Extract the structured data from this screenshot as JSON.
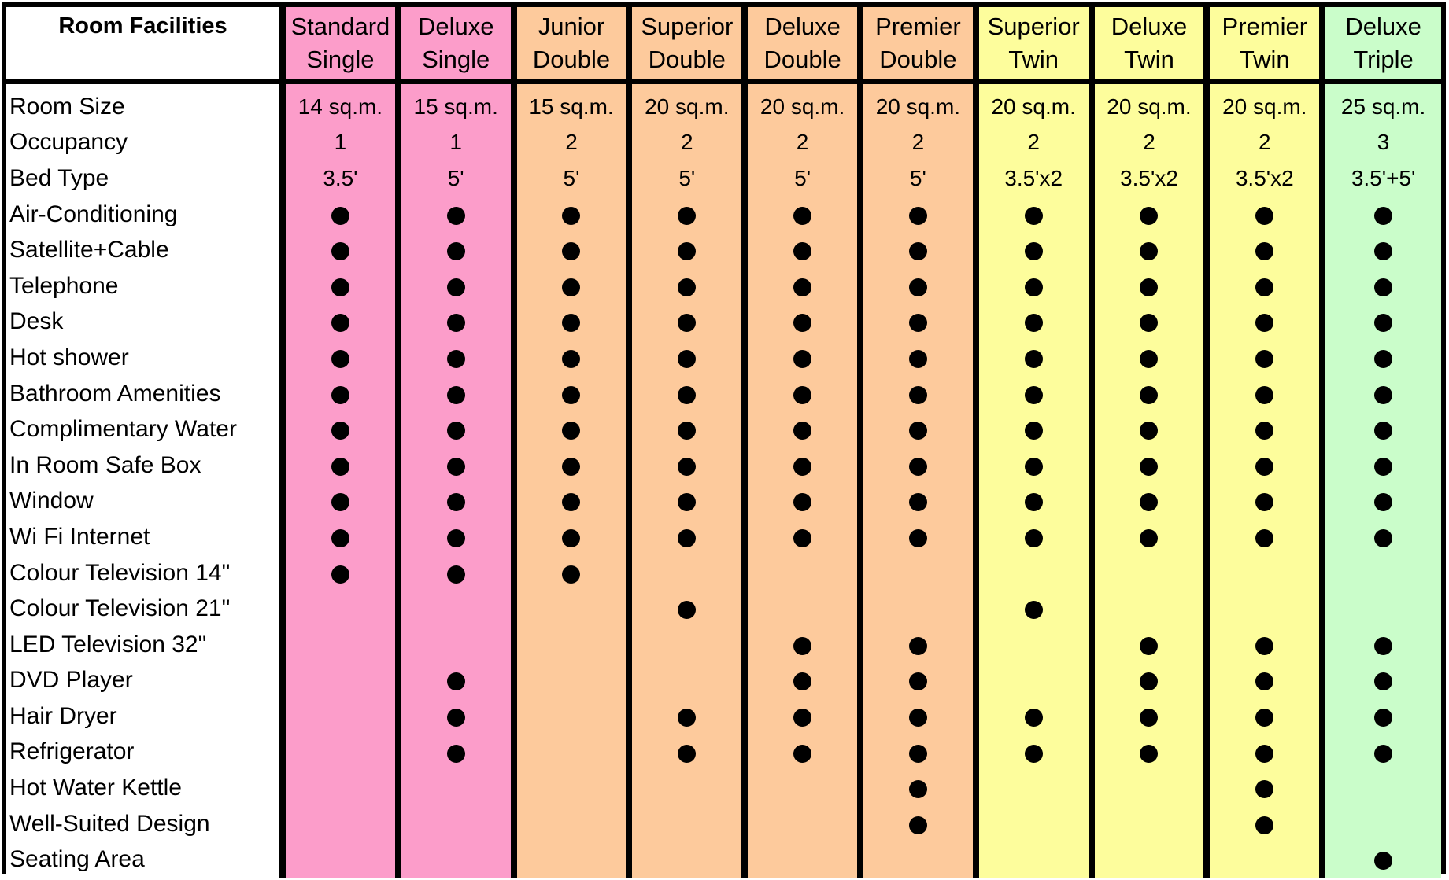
{
  "header_label": "Room Facilities",
  "rooms": [
    {
      "line1": "Standard",
      "line2": "Single",
      "tone": "pink"
    },
    {
      "line1": "Deluxe",
      "line2": "Single",
      "tone": "pink"
    },
    {
      "line1": "Junior",
      "line2": "Double",
      "tone": "peach"
    },
    {
      "line1": "Superior",
      "line2": "Double",
      "tone": "peach"
    },
    {
      "line1": "Deluxe",
      "line2": "Double",
      "tone": "peach"
    },
    {
      "line1": "Premier",
      "line2": "Double",
      "tone": "peach"
    },
    {
      "line1": "Superior",
      "line2": "Twin",
      "tone": "yellow"
    },
    {
      "line1": "Deluxe",
      "line2": "Twin",
      "tone": "yellow"
    },
    {
      "line1": "Premier",
      "line2": "Twin",
      "tone": "yellow"
    },
    {
      "line1": "Deluxe",
      "line2": "Triple",
      "tone": "green"
    }
  ],
  "tone_colors": {
    "pink": "#fc9dca",
    "peach": "#fdca9c",
    "yellow": "#fdfd9c",
    "green": "#cafdca"
  },
  "text_rows": [
    {
      "label": "Room Size",
      "values": [
        "14 sq.m.",
        "15 sq.m.",
        "15 sq.m.",
        "20 sq.m.",
        "20 sq.m.",
        "20 sq.m.",
        "20 sq.m.",
        "20 sq.m.",
        "20 sq.m.",
        "25 sq.m."
      ]
    },
    {
      "label": "Occupancy",
      "values": [
        "1",
        "1",
        "2",
        "2",
        "2",
        "2",
        "2",
        "2",
        "2",
        "3"
      ]
    },
    {
      "label": "Bed Type",
      "values": [
        "3.5'",
        "5'",
        "5'",
        "5'",
        "5'",
        "5'",
        "3.5'x2",
        "3.5'x2",
        "3.5'x2",
        "3.5'+5'"
      ]
    }
  ],
  "feature_rows": [
    {
      "label": "Air-Conditioning",
      "available": [
        1,
        1,
        1,
        1,
        1,
        1,
        1,
        1,
        1,
        1
      ]
    },
    {
      "label": "Satellite+Cable",
      "available": [
        1,
        1,
        1,
        1,
        1,
        1,
        1,
        1,
        1,
        1
      ]
    },
    {
      "label": "Telephone",
      "available": [
        1,
        1,
        1,
        1,
        1,
        1,
        1,
        1,
        1,
        1
      ]
    },
    {
      "label": "Desk",
      "available": [
        1,
        1,
        1,
        1,
        1,
        1,
        1,
        1,
        1,
        1
      ]
    },
    {
      "label": "Hot shower",
      "available": [
        1,
        1,
        1,
        1,
        1,
        1,
        1,
        1,
        1,
        1
      ]
    },
    {
      "label": "Bathroom Amenities",
      "available": [
        1,
        1,
        1,
        1,
        1,
        1,
        1,
        1,
        1,
        1
      ]
    },
    {
      "label": "Complimentary Water",
      "available": [
        1,
        1,
        1,
        1,
        1,
        1,
        1,
        1,
        1,
        1
      ]
    },
    {
      "label": "In Room Safe Box",
      "available": [
        1,
        1,
        1,
        1,
        1,
        1,
        1,
        1,
        1,
        1
      ]
    },
    {
      "label": "Window",
      "available": [
        1,
        1,
        1,
        1,
        1,
        1,
        1,
        1,
        1,
        1
      ]
    },
    {
      "label": "Wi Fi Internet",
      "available": [
        1,
        1,
        1,
        1,
        1,
        1,
        1,
        1,
        1,
        1
      ]
    },
    {
      "label": "Colour Television 14\"",
      "available": [
        1,
        1,
        1,
        0,
        0,
        0,
        0,
        0,
        0,
        0
      ]
    },
    {
      "label": "Colour Television 21\"",
      "available": [
        0,
        0,
        0,
        1,
        0,
        0,
        1,
        0,
        0,
        0
      ]
    },
    {
      "label": "LED Television 32\"",
      "available": [
        0,
        0,
        0,
        0,
        1,
        1,
        0,
        1,
        1,
        1
      ]
    },
    {
      "label": "DVD Player",
      "available": [
        0,
        1,
        0,
        0,
        1,
        1,
        0,
        1,
        1,
        1
      ]
    },
    {
      "label": "Hair Dryer",
      "available": [
        0,
        1,
        0,
        1,
        1,
        1,
        1,
        1,
        1,
        1
      ]
    },
    {
      "label": "Refrigerator",
      "available": [
        0,
        1,
        0,
        1,
        1,
        1,
        1,
        1,
        1,
        1
      ]
    },
    {
      "label": "Hot Water Kettle",
      "available": [
        0,
        0,
        0,
        0,
        0,
        1,
        0,
        0,
        1,
        0
      ]
    },
    {
      "label": "Well-Suited Design",
      "available": [
        0,
        0,
        0,
        0,
        0,
        1,
        0,
        0,
        1,
        0
      ]
    },
    {
      "label": "Seating Area",
      "available": [
        0,
        0,
        0,
        0,
        0,
        0,
        0,
        0,
        0,
        1
      ]
    }
  ]
}
